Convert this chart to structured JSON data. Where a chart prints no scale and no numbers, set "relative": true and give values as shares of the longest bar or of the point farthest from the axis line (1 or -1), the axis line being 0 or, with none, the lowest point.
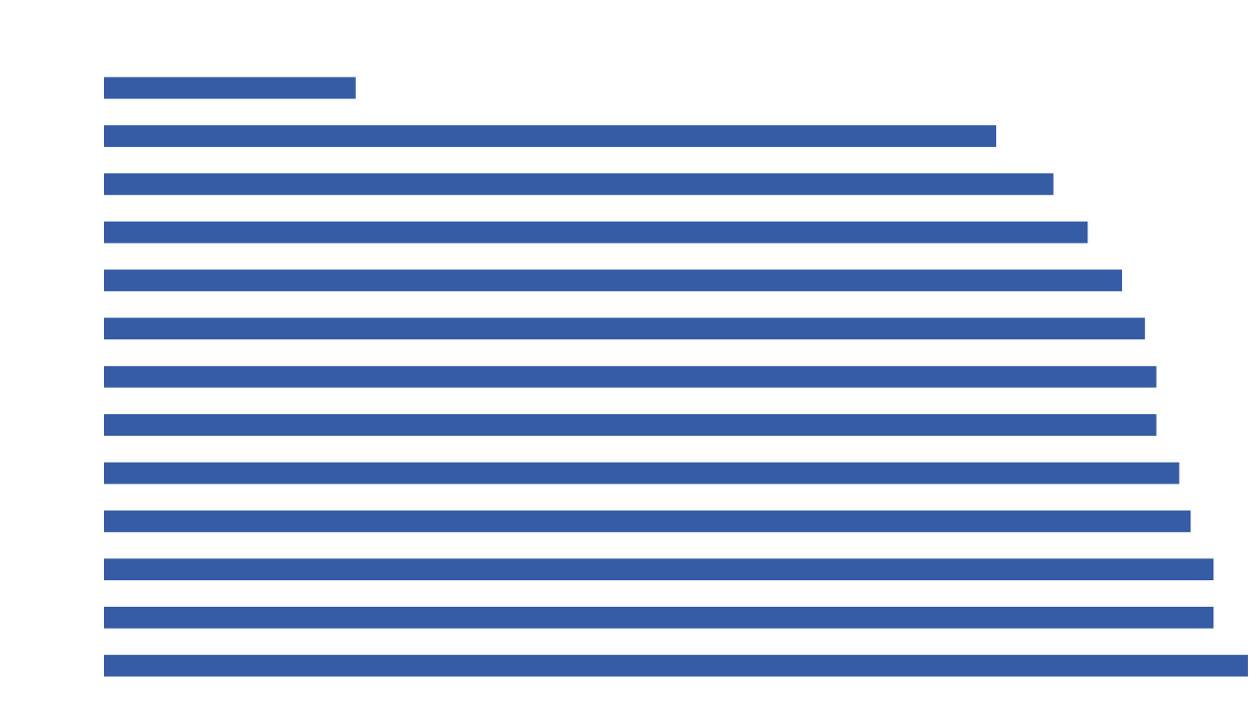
{
  "chart_data": {
    "type": "bar",
    "orientation": "horizontal",
    "relative": true,
    "categories": [
      null,
      null,
      null,
      null,
      null,
      null,
      null,
      null,
      null,
      null,
      null,
      null,
      null
    ],
    "values": [
      0.22,
      0.78,
      0.83,
      0.86,
      0.89,
      0.91,
      0.92,
      0.92,
      0.94,
      0.95,
      0.97,
      0.97,
      1
    ],
    "color": "#365ca6"
  }
}
